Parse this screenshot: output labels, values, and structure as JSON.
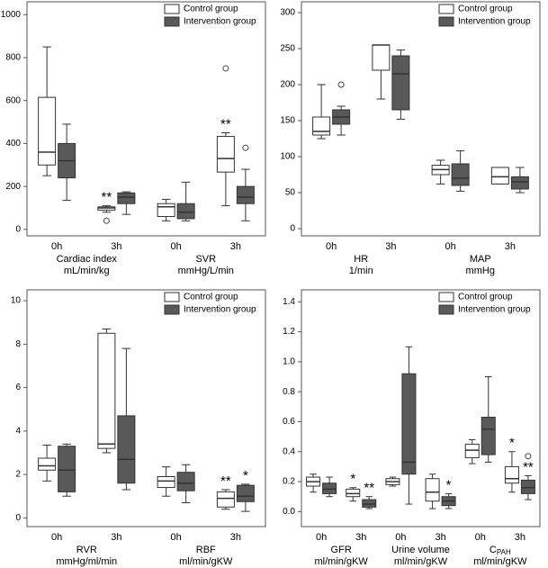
{
  "chart_data": [
    {
      "type": "box",
      "ylim": [
        -30,
        1060
      ],
      "yticks": [
        0,
        200,
        400,
        600,
        800,
        1000
      ],
      "categories": [
        "0h",
        "3h",
        "0h",
        "3h"
      ],
      "groups": [
        {
          "name": "Cardiac index",
          "unit": "mL/min/kg"
        },
        {
          "name": "SVR",
          "unit": "mmHg/L/min"
        }
      ],
      "legend": "top-right",
      "series": [
        {
          "name": "Control group",
          "color": "#ffffff",
          "boxes": [
            {
              "min": 250,
              "q1": 300,
              "median": 360,
              "q3": 615,
              "max": 850,
              "outliers": []
            },
            {
              "min": 80,
              "q1": 90,
              "median": 100,
              "q3": 105,
              "max": 110,
              "outliers": [
                40
              ],
              "label": "**"
            },
            {
              "min": 40,
              "q1": 60,
              "median": 105,
              "q3": 120,
              "max": 140,
              "outliers": []
            },
            {
              "min": 110,
              "q1": 267,
              "median": 330,
              "q3": 433,
              "max": 450,
              "outliers": [
                750
              ],
              "label": "**"
            }
          ]
        },
        {
          "name": "Intervention group",
          "color": "#595959",
          "boxes": [
            {
              "min": 135,
              "q1": 240,
              "median": 320,
              "q3": 400,
              "max": 490,
              "outliers": []
            },
            {
              "min": 70,
              "q1": 120,
              "median": 150,
              "q3": 170,
              "max": 175,
              "outliers": []
            },
            {
              "min": 40,
              "q1": 50,
              "median": 80,
              "q3": 120,
              "max": 220,
              "outliers": []
            },
            {
              "min": 40,
              "q1": 120,
              "median": 150,
              "q3": 200,
              "max": 280,
              "outliers": [
                380
              ]
            }
          ]
        }
      ]
    },
    {
      "type": "box",
      "ylim": [
        -10,
        315
      ],
      "yticks": [
        0,
        50,
        100,
        150,
        200,
        250,
        300
      ],
      "categories": [
        "0h",
        "3h",
        "0h",
        "3h"
      ],
      "groups": [
        {
          "name": "HR",
          "unit": "1/min"
        },
        {
          "name": "MAP",
          "unit": "mmHg"
        }
      ],
      "legend": "top-right",
      "series": [
        {
          "name": "Control group",
          "color": "#ffffff",
          "boxes": [
            {
              "min": 125,
              "q1": 130,
              "median": 135,
              "q3": 155,
              "max": 200,
              "outliers": []
            },
            {
              "min": 180,
              "q1": 220,
              "median": 255,
              "q3": 255,
              "max": 255,
              "outliers": []
            },
            {
              "min": 62,
              "q1": 75,
              "median": 82,
              "q3": 88,
              "max": 95,
              "outliers": []
            },
            {
              "min": 62,
              "q1": 62,
              "median": 72,
              "q3": 85,
              "max": 85,
              "outliers": []
            }
          ]
        },
        {
          "name": "Intervention group",
          "color": "#595959",
          "boxes": [
            {
              "min": 130,
              "q1": 145,
              "median": 155,
              "q3": 165,
              "max": 170,
              "outliers": [
                200
              ]
            },
            {
              "min": 152,
              "q1": 165,
              "median": 215,
              "q3": 240,
              "max": 248,
              "outliers": []
            },
            {
              "min": 52,
              "q1": 60,
              "median": 70,
              "q3": 90,
              "max": 108,
              "outliers": []
            },
            {
              "min": 50,
              "q1": 55,
              "median": 65,
              "q3": 72,
              "max": 85,
              "outliers": []
            }
          ]
        }
      ]
    },
    {
      "type": "box",
      "ylim": [
        -0.4,
        10.5
      ],
      "yticks": [
        0,
        2,
        4,
        6,
        8,
        10
      ],
      "categories": [
        "0h",
        "3h",
        "0h",
        "3h"
      ],
      "groups": [
        {
          "name": "RVR",
          "unit": "mmHg/ml/min"
        },
        {
          "name": "RBF",
          "unit": "ml/min/gKW"
        }
      ],
      "legend": "top-right",
      "series": [
        {
          "name": "Control group",
          "color": "#ffffff",
          "boxes": [
            {
              "min": 1.7,
              "q1": 2.2,
              "median": 2.4,
              "q3": 2.75,
              "max": 3.35,
              "outliers": []
            },
            {
              "min": 3.0,
              "q1": 3.2,
              "median": 3.4,
              "q3": 8.5,
              "max": 8.7,
              "outliers": []
            },
            {
              "min": 1.0,
              "q1": 1.4,
              "median": 1.7,
              "q3": 1.9,
              "max": 2.35,
              "outliers": []
            },
            {
              "min": 0.4,
              "q1": 0.5,
              "median": 0.9,
              "q3": 1.2,
              "max": 1.3,
              "outliers": [],
              "label": "**"
            }
          ]
        },
        {
          "name": "Intervention group",
          "color": "#595959",
          "boxes": [
            {
              "min": 1.0,
              "q1": 1.2,
              "median": 2.2,
              "q3": 3.3,
              "max": 3.4,
              "outliers": []
            },
            {
              "min": 1.3,
              "q1": 1.6,
              "median": 2.7,
              "q3": 4.7,
              "max": 7.8,
              "outliers": []
            },
            {
              "min": 0.7,
              "q1": 1.25,
              "median": 1.6,
              "q3": 2.1,
              "max": 2.45,
              "outliers": []
            },
            {
              "min": 0.3,
              "q1": 0.75,
              "median": 1.0,
              "q3": 1.5,
              "max": 1.55,
              "outliers": [],
              "label": "*"
            }
          ]
        }
      ]
    },
    {
      "type": "box",
      "ylim": [
        -0.1,
        1.48
      ],
      "yticks": [
        {
          "value": 0,
          "label": "0.0"
        },
        0.2,
        0.4,
        0.6,
        0.8,
        {
          "value": 1,
          "label": "1.0"
        },
        1.2,
        1.4
      ],
      "categories": [
        "0h",
        "3h",
        "0h",
        "3h",
        "0h",
        "3h"
      ],
      "groups": [
        {
          "name": "GFR",
          "unit": "ml/min/gKW"
        },
        {
          "name": "Urine volume",
          "unit": "ml/min/gKW"
        },
        {
          "name": "C",
          "sub": "PAH",
          "unit": "ml/min/gKW"
        }
      ],
      "legend": "top-right",
      "series": [
        {
          "name": "Control group",
          "color": "#ffffff",
          "boxes": [
            {
              "min": 0.13,
              "q1": 0.17,
              "median": 0.2,
              "q3": 0.23,
              "max": 0.25,
              "outliers": []
            },
            {
              "min": 0.07,
              "q1": 0.1,
              "median": 0.12,
              "q3": 0.15,
              "max": 0.16,
              "outliers": [],
              "label": "*"
            },
            {
              "min": 0.17,
              "q1": 0.18,
              "median": 0.2,
              "q3": 0.22,
              "max": 0.23,
              "outliers": []
            },
            {
              "min": 0.02,
              "q1": 0.07,
              "median": 0.13,
              "q3": 0.22,
              "max": 0.25,
              "outliers": []
            },
            {
              "min": 0.32,
              "q1": 0.36,
              "median": 0.41,
              "q3": 0.45,
              "max": 0.48,
              "outliers": []
            },
            {
              "min": 0.13,
              "q1": 0.19,
              "median": 0.22,
              "q3": 0.3,
              "max": 0.4,
              "outliers": [],
              "label": "*"
            }
          ]
        },
        {
          "name": "Intervention group",
          "color": "#595959",
          "boxes": [
            {
              "min": 0.1,
              "q1": 0.12,
              "median": 0.15,
              "q3": 0.19,
              "max": 0.23,
              "outliers": []
            },
            {
              "min": 0.02,
              "q1": 0.03,
              "median": 0.05,
              "q3": 0.08,
              "max": 0.1,
              "outliers": [],
              "label": "**"
            },
            {
              "min": 0.05,
              "q1": 0.25,
              "median": 0.33,
              "q3": 0.92,
              "max": 1.1,
              "outliers": []
            },
            {
              "min": 0.02,
              "q1": 0.04,
              "median": 0.07,
              "q3": 0.1,
              "max": 0.12,
              "outliers": [],
              "label": "*"
            },
            {
              "min": 0.33,
              "q1": 0.38,
              "median": 0.55,
              "q3": 0.63,
              "max": 0.9,
              "outliers": []
            },
            {
              "min": 0.08,
              "q1": 0.12,
              "median": 0.16,
              "q3": 0.21,
              "max": 0.24,
              "outliers": [
                0.37
              ],
              "label": "**"
            }
          ]
        }
      ]
    }
  ]
}
